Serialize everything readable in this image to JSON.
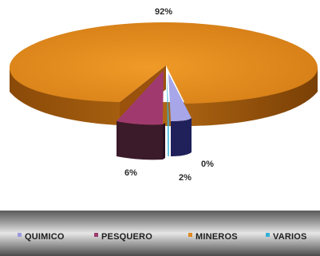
{
  "chart_data": {
    "type": "pie",
    "style": "3d-exploded",
    "categories": [
      "QUIMICO",
      "PESQUERO",
      "MINEROS",
      "VARIOS"
    ],
    "values": [
      2,
      6,
      92,
      0
    ],
    "data_labels": [
      "2%",
      "6%",
      "92%",
      "0%"
    ],
    "legend": {
      "placement": "bottom",
      "entries": [
        "QUIMICO",
        "PESQUERO",
        "MINEROS",
        "VARIOS"
      ]
    },
    "colors": {
      "QUIMICO": "#9a9ae0",
      "PESQUERO": "#9c3c6c",
      "MINEROS": "#e08a20",
      "VARIOS": "#35b0d8"
    }
  }
}
